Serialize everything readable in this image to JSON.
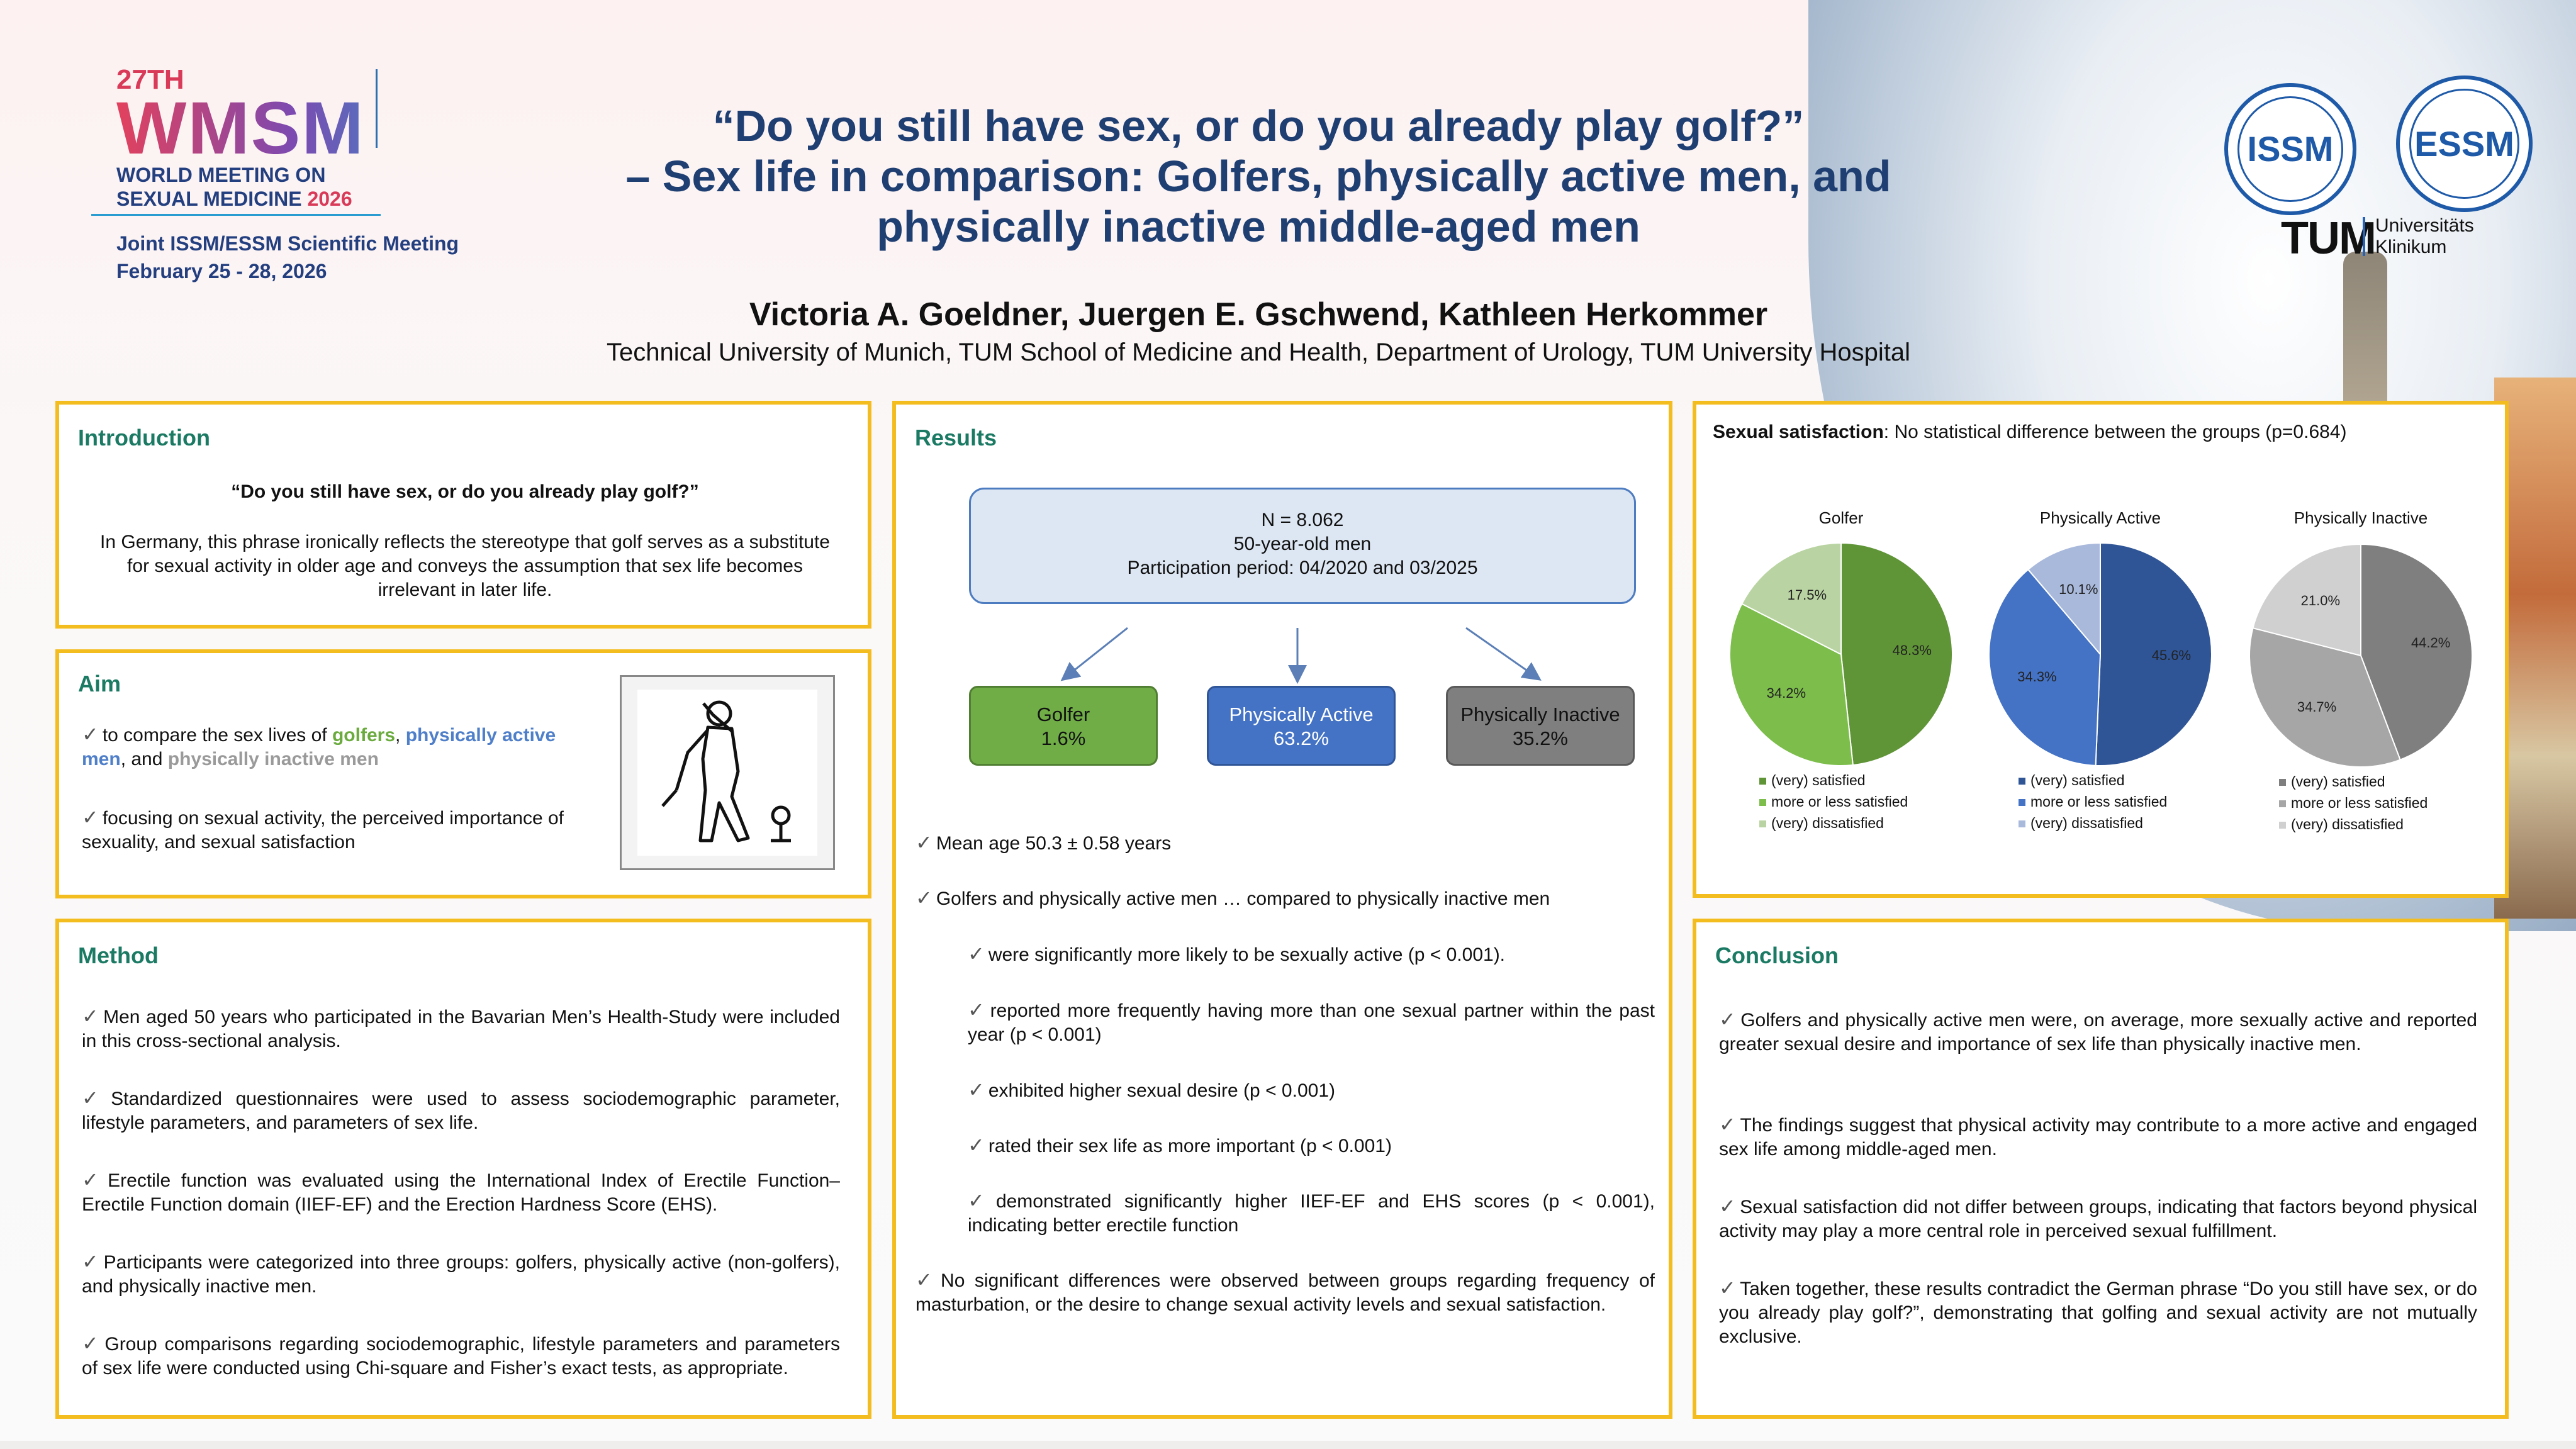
{
  "header": {
    "logo": {
      "edition": "27TH",
      "acronym": "WMSM",
      "line1": "WORLD MEETING ON",
      "line2": "SEXUAL MEDICINE",
      "year": "2026"
    },
    "meeting": {
      "line1": "Joint ISSM/ESSM Scientific Meeting",
      "line2": "February 25 - 28, 2026"
    },
    "title": [
      "“Do you still have sex, or do you already play golf?”",
      "– Sex life in comparison: Golfers, physically active men, and",
      "physically inactive middle-aged men"
    ],
    "authors": "Victoria A. Goeldner, Juergen E. Gschwend, Kathleen Herkommer",
    "affiliation": "Technical University of Munich, TUM School of Medicine and Health, Department of Urology, TUM University Hospital",
    "partner_logos": {
      "issm": "ISSM",
      "essm": "ESSM",
      "tum": "TUM",
      "tum_line1": "Universitäts",
      "tum_line2": "Klinikum"
    }
  },
  "introduction": {
    "title": "Introduction",
    "quote": "“Do you still have sex, or do you already play golf?”",
    "body": "In Germany, this phrase ironically reflects the stereotype that golf serves as a substitute for sexual activity in older age and conveys the assumption that sex life becomes irrelevant in later life."
  },
  "aim": {
    "title": "Aim",
    "b1_pre": "to compare the sex lives of ",
    "b1_golf": "golfers",
    "b1_sep": ", ",
    "b1_active": "physically active men",
    "b1_and": ", and ",
    "b1_inactive": "physically inactive men",
    "b2": "focusing on sexual activity, the perceived importance of sexuality, and sexual satisfaction",
    "image_icon": "golfer-icon"
  },
  "method": {
    "title": "Method",
    "items": [
      "Men aged 50 years who participated in the Bavarian Men’s Health-Study were included in this cross-sectional analysis.",
      "Standardized questionnaires were used to assess sociodemographic parameter, lifestyle parameters, and parameters of sex life.",
      "Erectile function was evaluated using the International Index of Erectile Function–Erectile Function domain (IIEF-EF) and the Erection Hardness Score (EHS).",
      "Participants were categorized into three groups: golfers, physically active (non-golfers), and physically inactive men.",
      "Group comparisons regarding sociodemographic, lifestyle parameters and parameters of sex life were conducted using Chi-square and Fisher’s exact tests, as appropriate."
    ]
  },
  "results": {
    "title": "Results",
    "n_line1": "N = 8.062",
    "n_line2": "50-year-old men",
    "n_line3": "Participation period: 04/2020 and 03/2025",
    "groups": [
      {
        "name": "Golfer",
        "pct": "1.6%",
        "color": "#70ad47"
      },
      {
        "name": "Physically Active",
        "pct": "63.2%",
        "color": "#4472c4"
      },
      {
        "name": "Physically Inactive",
        "pct": "35.2%",
        "color": "#808080"
      }
    ],
    "mean_age": "Mean age 50.3 ± 0.58 years",
    "compare_intro": "Golfers and physically active men … compared to physically inactive men",
    "sub": [
      "were significantly more likely to be sexually active (p < 0.001).",
      "reported more frequently having more than one sexual partner within the past year (p < 0.001)",
      "exhibited higher sexual desire (p < 0.001)",
      "rated their sex life as more important (p < 0.001)",
      "demonstrated significantly higher IIEF-EF and EHS scores (p < 0.001), indicating better erectile function"
    ],
    "no_diff": "No significant differences were observed between groups regarding frequency of masturbation, or the desire to change sexual activity levels and sexual satisfaction."
  },
  "satisfaction": {
    "heading_bold": "Sexual satisfaction",
    "heading_rest": ": No statistical difference between the groups (p=0.684)"
  },
  "chart_data": [
    {
      "type": "pie",
      "title": "Golfer",
      "categories": [
        "(very) satisfied",
        "more or less satisfied",
        "(very) dissatisfied"
      ],
      "values": [
        48.3,
        34.2,
        17.5
      ],
      "labels": [
        "48.3%",
        "34.2%",
        "17.5%"
      ],
      "colors": [
        "#5f9437",
        "#7cbd4b",
        "#b9d4a2"
      ]
    },
    {
      "type": "pie",
      "title": "Physically Active",
      "categories": [
        "(very) satisfied",
        "more or less satisfied",
        "(very) dissatisfied"
      ],
      "values": [
        45.6,
        34.3,
        10.1
      ],
      "labels": [
        "45.6%",
        "34.3%",
        "10.1%"
      ],
      "colors": [
        "#2f5597",
        "#4472c4",
        "#a9b9dc"
      ]
    },
    {
      "type": "pie",
      "title": "Physically Inactive",
      "categories": [
        "(very) satisfied",
        "more or less satisfied",
        "(very) dissatisfied"
      ],
      "values": [
        44.2,
        34.7,
        21.0
      ],
      "labels": [
        "44.2%",
        "34.7%",
        "21.0%"
      ],
      "colors": [
        "#7f7f7f",
        "#a6a6a6",
        "#d0d0d0"
      ]
    }
  ],
  "conclusion": {
    "title": "Conclusion",
    "items": [
      "Golfers and physically active men were, on average, more sexually active and reported greater sexual desire and importance of sex life than physically inactive men.",
      "The findings suggest that physical activity may contribute to a more active and engaged sex life among middle-aged men.",
      "Sexual satisfaction did not differ between groups, indicating that factors beyond physical activity may play a more central role in perceived sexual fulfillment.",
      "Taken together, these results contradict the German phrase “Do you still have sex, or do you already play golf?”, demonstrating that golfing and sexual activity are not mutually exclusive."
    ]
  },
  "icons": {
    "bullet": "check-icon"
  }
}
